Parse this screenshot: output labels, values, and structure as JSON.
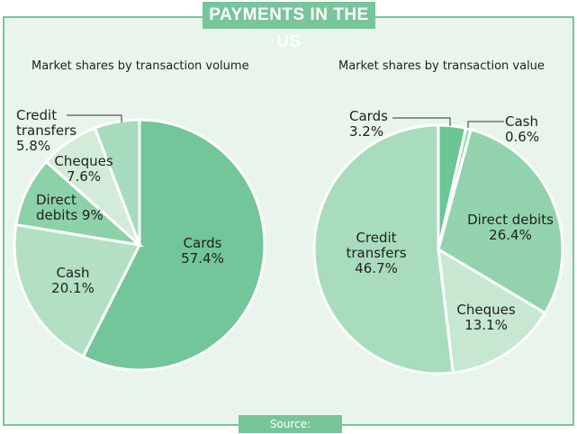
{
  "header": {
    "title": "PAYMENTS IN THE US"
  },
  "footer": {
    "source": "Source: GlobalData"
  },
  "chart_data": [
    {
      "type": "pie",
      "title": "Market shares by transaction volume",
      "categories": [
        "Cards",
        "Cash",
        "Direct debits",
        "Cheques",
        "Credit transfers"
      ],
      "values": [
        57.4,
        20.1,
        9,
        7.6,
        5.8
      ],
      "value_labels": [
        "57.4%",
        "20.1%",
        "9%",
        "7.6%",
        "5.8%"
      ],
      "colors": [
        "#72c69a",
        "#b3dfc3",
        "#8dd1a9",
        "#d3ecda",
        "#a7dbbd"
      ]
    },
    {
      "type": "pie",
      "title": "Market shares by transaction value",
      "categories": [
        "Cards",
        "Cash",
        "Direct debits",
        "Cheques",
        "Credit transfers"
      ],
      "values": [
        3.2,
        0.6,
        26.4,
        13.1,
        46.7
      ],
      "value_labels": [
        "3.2%",
        "0.6%",
        "26.4%",
        "13.1%",
        "46.7%"
      ],
      "colors": [
        "#6cc594",
        "#9fd8b7",
        "#92d3ad",
        "#c6e8d1",
        "#a9dcbd"
      ]
    }
  ]
}
